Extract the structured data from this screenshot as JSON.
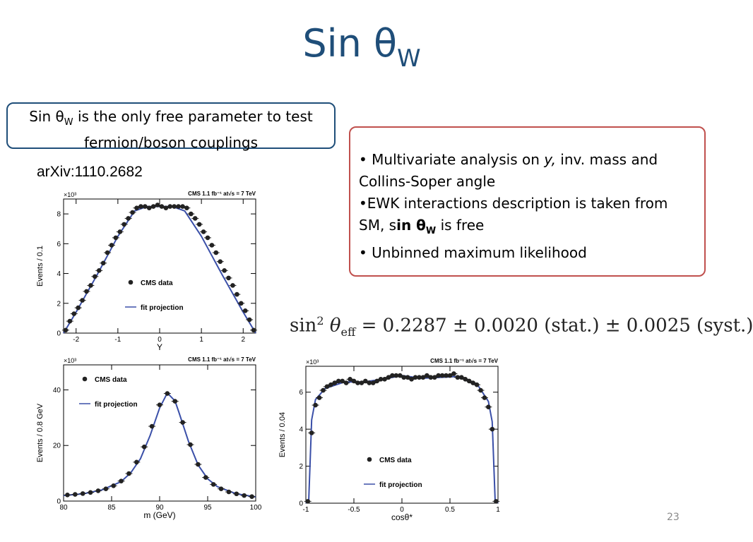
{
  "slide": {
    "title": "Sin θ",
    "title_sub": "W",
    "callout": {
      "line1_pre": "Sin θ",
      "line1_sub": "W",
      "line1_post": " is the only free parameter to test",
      "line2": "fermion/boson couplings"
    },
    "reference": "arXiv:1110.2682",
    "bullets": {
      "b1_pre": "• Multivariate analysis on ",
      "b1_y": "y,",
      "b1_post": "  inv. mass  and Collins-Soper angle",
      "b2_pre": "•EWK interactions description is taken from SM, s",
      "b2_bold": "in θ",
      "b2_sub": "W",
      "b2_post": " is free",
      "b3": "• Unbinned maximum likelihood"
    },
    "formula": {
      "sin": "sin",
      "sup": "2",
      "theta": " θ",
      "sub": "eff",
      "rest": " = 0.2287 ± 0.0020 (stat.) ± 0.0025 (syst.)"
    },
    "page_number": "23"
  },
  "colors": {
    "title": "#1f4e79",
    "callout_border": "#1f4e79",
    "bullet_border": "#c0504d",
    "fit_line": "#3a4fa8",
    "data_marker": "#222222"
  },
  "chart_data": [
    {
      "id": "rapidity",
      "type": "scatter",
      "header": "CMS 1.1 fb⁻¹ at√s = 7 TeV",
      "multiplier": "×10³",
      "xlabel": "Y",
      "ylabel": "Events / 0.1",
      "xlim": [
        -2.3,
        2.3
      ],
      "ylim": [
        0,
        9
      ],
      "xticks": [
        -2,
        -1,
        0,
        1,
        2
      ],
      "yticks": [
        0,
        2,
        4,
        6,
        8
      ],
      "legend": {
        "data": "CMS data",
        "fit": "fit projection",
        "placement": "center"
      },
      "series": [
        {
          "name": "CMS data",
          "kind": "points",
          "x": [
            -2.25,
            -2.15,
            -2.05,
            -1.95,
            -1.85,
            -1.75,
            -1.65,
            -1.55,
            -1.45,
            -1.35,
            -1.25,
            -1.15,
            -1.05,
            -0.95,
            -0.85,
            -0.75,
            -0.65,
            -0.55,
            -0.45,
            -0.35,
            -0.25,
            -0.15,
            -0.05,
            0.05,
            0.15,
            0.25,
            0.35,
            0.45,
            0.55,
            0.65,
            0.75,
            0.85,
            0.95,
            1.05,
            1.15,
            1.25,
            1.35,
            1.45,
            1.55,
            1.65,
            1.75,
            1.85,
            1.95,
            2.05,
            2.15,
            2.25
          ],
          "y": [
            0.2,
            0.8,
            1.3,
            1.7,
            2.2,
            2.8,
            3.2,
            3.8,
            4.2,
            4.7,
            5.4,
            5.9,
            6.4,
            6.8,
            7.3,
            7.7,
            8.1,
            8.4,
            8.5,
            8.5,
            8.4,
            8.5,
            8.6,
            8.5,
            8.4,
            8.5,
            8.5,
            8.5,
            8.5,
            8.4,
            8.0,
            7.7,
            7.3,
            6.8,
            6.4,
            5.9,
            5.4,
            4.8,
            4.2,
            3.7,
            3.2,
            2.6,
            2.0,
            1.5,
            0.9,
            0.2
          ]
        },
        {
          "name": "fit projection",
          "kind": "line",
          "x": [
            -2.3,
            -2.0,
            -1.5,
            -1.0,
            -0.6,
            -0.3,
            0.0,
            0.3,
            0.6,
            1.0,
            1.5,
            2.0,
            2.3
          ],
          "y": [
            0.0,
            1.4,
            3.9,
            6.5,
            8.2,
            8.5,
            8.5,
            8.5,
            8.2,
            6.5,
            3.9,
            1.4,
            0.0
          ]
        }
      ]
    },
    {
      "id": "mass",
      "type": "scatter",
      "header": "CMS 1.1 fb⁻¹ at√s = 7 TeV",
      "multiplier": "×10³",
      "xlabel": "m (GeV)",
      "ylabel": "Events / 0.8 GeV",
      "xlim": [
        80,
        100
      ],
      "ylim": [
        0,
        49
      ],
      "xticks": [
        80,
        85,
        90,
        95,
        100
      ],
      "yticks": [
        0,
        20,
        40
      ],
      "legend": {
        "data": "CMS data",
        "fit": "fit projection",
        "placement": "top-left"
      },
      "series": [
        {
          "name": "CMS data",
          "kind": "points",
          "x": [
            80.4,
            81.2,
            82.0,
            82.8,
            83.6,
            84.4,
            85.2,
            86.0,
            86.8,
            87.6,
            88.4,
            89.2,
            90.0,
            90.8,
            91.6,
            92.4,
            93.2,
            94.0,
            94.8,
            95.6,
            96.4,
            97.2,
            98.0,
            98.8,
            99.6
          ],
          "y": [
            2.2,
            2.4,
            2.7,
            3.1,
            3.7,
            4.4,
            5.5,
            7.2,
            9.9,
            14.0,
            19.5,
            26.9,
            34.6,
            38.7,
            35.9,
            28.3,
            20.3,
            13.2,
            8.5,
            6.0,
            4.4,
            3.3,
            2.6,
            2.0,
            1.6
          ]
        },
        {
          "name": "fit projection",
          "kind": "line",
          "x": [
            80,
            82,
            84,
            86,
            87,
            88,
            89,
            90,
            90.8,
            91.6,
            92,
            93,
            94,
            95,
            96,
            98,
            100
          ],
          "y": [
            2.0,
            2.6,
            4.0,
            7.0,
            10.2,
            15.2,
            23.5,
            33.5,
            38.9,
            36.0,
            32.0,
            21.5,
            13.0,
            8.0,
            5.2,
            2.6,
            1.5
          ]
        }
      ]
    },
    {
      "id": "costheta",
      "type": "scatter",
      "header": "CMS 1.1 fb⁻¹ at√s = 7 TeV",
      "multiplier": "×10³",
      "xlabel": "cosθ*",
      "ylabel": "Events / 0.04",
      "xlim": [
        -1,
        1
      ],
      "ylim": [
        0,
        7.4
      ],
      "xticks": [
        -1,
        -0.5,
        0,
        0.5,
        1
      ],
      "yticks": [
        0,
        2,
        4,
        6
      ],
      "legend": {
        "data": "CMS data",
        "fit": "fit projection",
        "placement": "bottom-center"
      },
      "series": [
        {
          "name": "CMS data",
          "kind": "points",
          "x": [
            -0.98,
            -0.94,
            -0.9,
            -0.86,
            -0.82,
            -0.78,
            -0.74,
            -0.7,
            -0.66,
            -0.62,
            -0.58,
            -0.54,
            -0.5,
            -0.46,
            -0.42,
            -0.38,
            -0.34,
            -0.3,
            -0.26,
            -0.22,
            -0.18,
            -0.14,
            -0.1,
            -0.06,
            -0.02,
            0.02,
            0.06,
            0.1,
            0.14,
            0.18,
            0.22,
            0.26,
            0.3,
            0.34,
            0.38,
            0.42,
            0.46,
            0.5,
            0.54,
            0.58,
            0.62,
            0.66,
            0.7,
            0.74,
            0.78,
            0.82,
            0.86,
            0.9,
            0.94,
            0.98
          ],
          "y": [
            0.1,
            3.8,
            5.3,
            5.7,
            6.1,
            6.3,
            6.4,
            6.5,
            6.6,
            6.6,
            6.5,
            6.7,
            6.6,
            6.5,
            6.5,
            6.6,
            6.5,
            6.5,
            6.6,
            6.7,
            6.7,
            6.8,
            6.9,
            6.9,
            6.9,
            6.8,
            6.8,
            6.7,
            6.8,
            6.8,
            6.8,
            6.9,
            6.8,
            6.8,
            6.9,
            6.9,
            6.9,
            6.9,
            7.0,
            6.8,
            6.8,
            6.7,
            6.6,
            6.5,
            6.4,
            6.1,
            5.7,
            5.2,
            4.0,
            0.1
          ]
        },
        {
          "name": "fit projection",
          "kind": "line",
          "x": [
            -1.0,
            -0.97,
            -0.94,
            -0.9,
            -0.8,
            -0.6,
            -0.4,
            -0.2,
            0.0,
            0.2,
            0.4,
            0.6,
            0.8,
            0.9,
            0.94,
            0.97,
            1.0
          ],
          "y": [
            0.0,
            0.2,
            4.5,
            5.6,
            6.2,
            6.55,
            6.55,
            6.7,
            6.9,
            6.75,
            6.8,
            6.85,
            6.3,
            5.5,
            4.4,
            0.2,
            0.0
          ]
        }
      ]
    }
  ]
}
